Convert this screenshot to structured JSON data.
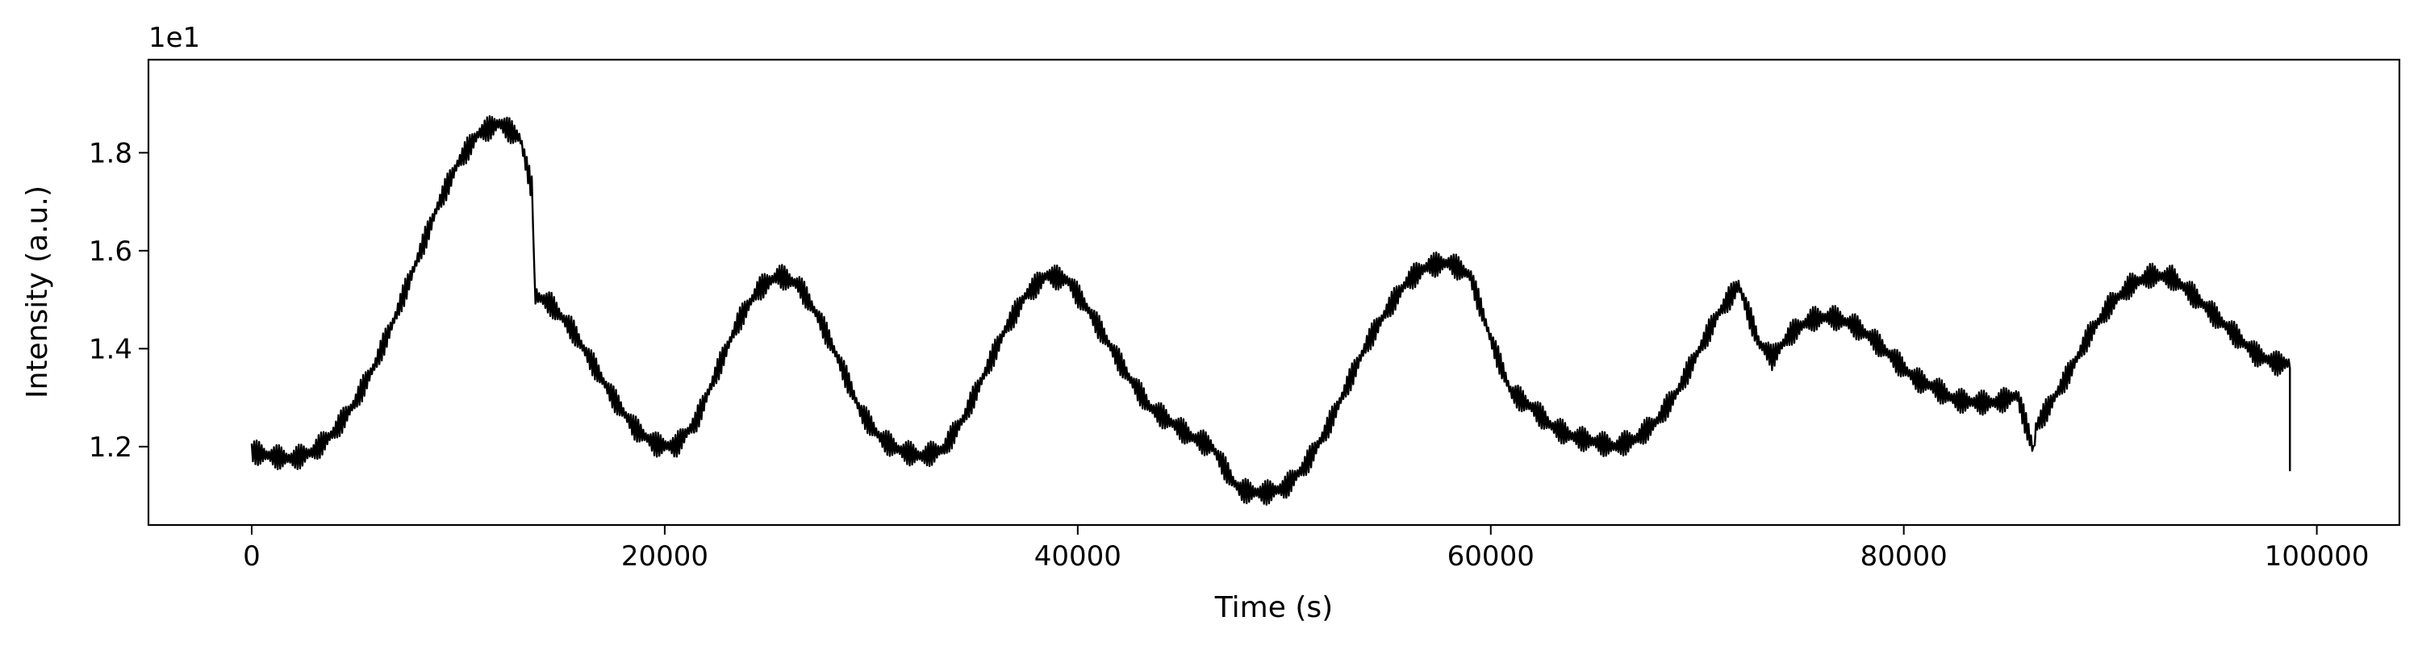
{
  "chart_data": {
    "type": "line",
    "title": "",
    "xlabel": "Time (s)",
    "ylabel": "Intensity (a.u.)",
    "y_offset_label": "1e1",
    "xlim": [
      -5000,
      104000
    ],
    "ylim": [
      1.04,
      1.99
    ],
    "y_scale_factor": 10,
    "xticks": [
      0,
      20000,
      40000,
      60000,
      80000,
      100000
    ],
    "xtick_labels": [
      "0",
      "20000",
      "40000",
      "60000",
      "80000",
      "100000"
    ],
    "yticks": [
      1.2,
      1.4,
      1.6,
      1.8
    ],
    "ytick_labels": [
      "1.2",
      "1.4",
      "1.6",
      "1.8"
    ],
    "grid": false,
    "legend": "none",
    "line_color": "#000000",
    "band_halfwidth": 0.025,
    "series": [
      {
        "x": [
          0,
          1000,
          2000,
          3000,
          4000,
          5000,
          6000,
          7000,
          8000,
          9000,
          10000,
          11000,
          12000,
          13000,
          13600,
          13700,
          14500,
          15500,
          16500,
          17500,
          18500,
          19500,
          20500,
          21500,
          22500,
          23500,
          24500,
          25500,
          26500,
          27500,
          28500,
          29500,
          30500,
          31500,
          32500,
          33500,
          34500,
          35500,
          36500,
          37500,
          38500,
          39500,
          40500,
          41500,
          42500,
          43500,
          44500,
          45500,
          46500,
          47500,
          47900,
          48000,
          49000,
          50000,
          51000,
          52000,
          53000,
          54000,
          55000,
          56000,
          57000,
          58000,
          59000,
          60000,
          60900,
          61000,
          62000,
          63000,
          64000,
          65000,
          66000,
          67000,
          68000,
          69000,
          70000,
          71000,
          72000,
          73000,
          73500,
          73600,
          74500,
          75500,
          76500,
          77500,
          78500,
          79500,
          80500,
          81500,
          82500,
          83500,
          84500,
          85500,
          86300,
          86400,
          87000,
          88000,
          89000,
          90000,
          91000,
          92000,
          93000,
          94000,
          95000,
          96000,
          97000,
          98000,
          98700,
          98700
        ],
        "y": [
          1.19,
          1.18,
          1.175,
          1.19,
          1.23,
          1.29,
          1.37,
          1.47,
          1.58,
          1.69,
          1.78,
          1.84,
          1.86,
          1.83,
          1.72,
          1.51,
          1.49,
          1.44,
          1.37,
          1.3,
          1.24,
          1.205,
          1.2,
          1.25,
          1.35,
          1.45,
          1.52,
          1.55,
          1.53,
          1.46,
          1.37,
          1.27,
          1.215,
          1.19,
          1.18,
          1.195,
          1.26,
          1.35,
          1.44,
          1.51,
          1.55,
          1.54,
          1.48,
          1.41,
          1.34,
          1.28,
          1.25,
          1.22,
          1.2,
          1.13,
          1.11,
          1.11,
          1.105,
          1.115,
          1.16,
          1.23,
          1.32,
          1.41,
          1.48,
          1.54,
          1.57,
          1.575,
          1.55,
          1.42,
          1.32,
          1.31,
          1.28,
          1.24,
          1.22,
          1.21,
          1.2,
          1.215,
          1.25,
          1.31,
          1.39,
          1.47,
          1.53,
          1.41,
          1.39,
          1.38,
          1.43,
          1.46,
          1.465,
          1.45,
          1.42,
          1.38,
          1.34,
          1.32,
          1.295,
          1.29,
          1.29,
          1.305,
          1.19,
          1.24,
          1.28,
          1.35,
          1.43,
          1.49,
          1.53,
          1.55,
          1.545,
          1.51,
          1.47,
          1.43,
          1.39,
          1.37,
          1.37,
          1.15
        ]
      }
    ]
  }
}
